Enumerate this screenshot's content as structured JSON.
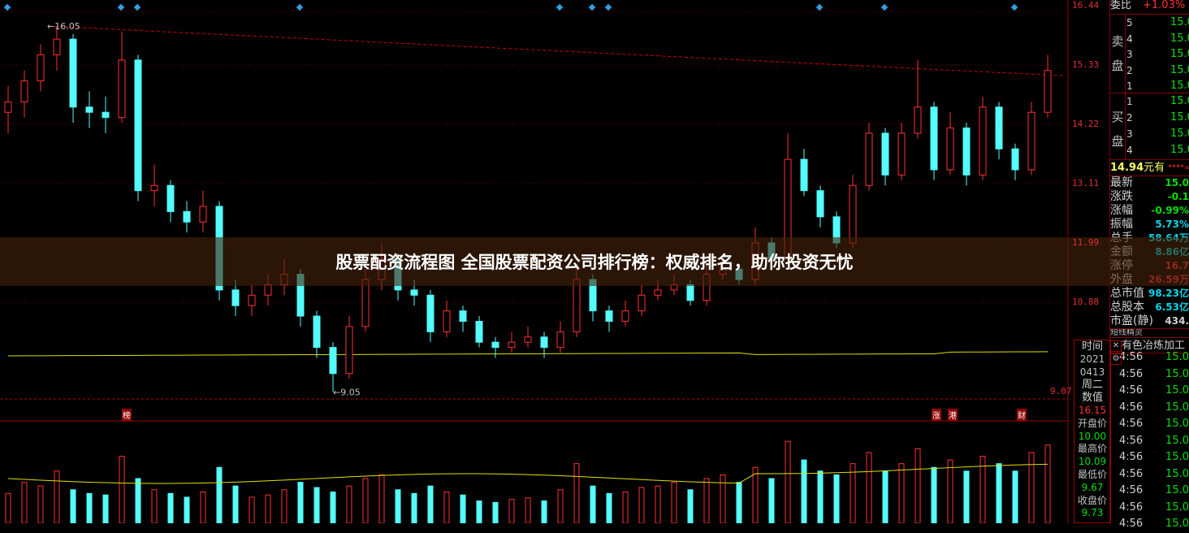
{
  "banner": {
    "title": "股票配资流程图 全国股票配资公司排行榜：权威排名，助你投资无忧"
  },
  "chart_data": {
    "type": "candlestick",
    "price_axis_ticks": [
      "16.44",
      "15.33",
      "14.22",
      "13.11",
      "11.99",
      "10.88",
      "9.07"
    ],
    "ylim": [
      9.07,
      16.44
    ],
    "high_annotation": "16.05",
    "low_annotation": "9.05",
    "colors": {
      "up": "#ff3030",
      "down": "#54fcfc",
      "ma": "#e0e000"
    },
    "candles": [
      [
        14.4,
        14.9,
        14.0,
        14.6
      ],
      [
        14.6,
        15.2,
        14.3,
        15.0
      ],
      [
        15.0,
        15.7,
        14.8,
        15.5
      ],
      [
        15.5,
        16.05,
        15.2,
        15.8
      ],
      [
        15.8,
        15.9,
        14.2,
        14.5
      ],
      [
        14.5,
        14.8,
        14.1,
        14.4
      ],
      [
        14.4,
        14.7,
        14.0,
        14.3
      ],
      [
        14.3,
        15.95,
        14.2,
        15.4
      ],
      [
        15.4,
        15.5,
        12.7,
        12.9
      ],
      [
        12.9,
        13.4,
        12.6,
        13.0
      ],
      [
        13.0,
        13.1,
        12.3,
        12.5
      ],
      [
        12.5,
        12.7,
        12.1,
        12.3
      ],
      [
        12.3,
        12.9,
        12.1,
        12.6
      ],
      [
        12.6,
        12.7,
        10.8,
        11.0
      ],
      [
        11.0,
        11.2,
        10.5,
        10.7
      ],
      [
        10.7,
        11.1,
        10.5,
        10.9
      ],
      [
        10.9,
        11.3,
        10.7,
        11.1
      ],
      [
        11.1,
        11.6,
        10.9,
        11.3
      ],
      [
        11.3,
        11.4,
        10.3,
        10.5
      ],
      [
        10.5,
        10.6,
        9.7,
        9.9
      ],
      [
        9.9,
        10.0,
        9.05,
        9.4
      ],
      [
        9.4,
        10.5,
        9.3,
        10.3
      ],
      [
        10.3,
        11.4,
        10.2,
        11.2
      ],
      [
        11.2,
        11.9,
        11.0,
        11.6
      ],
      [
        11.6,
        11.7,
        10.8,
        11.0
      ],
      [
        11.0,
        11.2,
        10.7,
        10.9
      ],
      [
        10.9,
        11.0,
        10.0,
        10.2
      ],
      [
        10.2,
        10.8,
        10.1,
        10.6
      ],
      [
        10.6,
        10.7,
        10.2,
        10.4
      ],
      [
        10.4,
        10.5,
        9.9,
        10.0
      ],
      [
        10.0,
        10.1,
        9.7,
        9.9
      ],
      [
        9.9,
        10.2,
        9.8,
        10.0
      ],
      [
        10.0,
        10.3,
        9.9,
        10.1
      ],
      [
        10.1,
        10.2,
        9.7,
        9.9
      ],
      [
        9.9,
        10.4,
        9.8,
        10.2
      ],
      [
        10.2,
        11.5,
        10.1,
        11.2
      ],
      [
        11.2,
        11.3,
        10.4,
        10.6
      ],
      [
        10.6,
        10.7,
        10.2,
        10.4
      ],
      [
        10.4,
        10.8,
        10.3,
        10.6
      ],
      [
        10.6,
        11.1,
        10.5,
        10.9
      ],
      [
        10.9,
        11.2,
        10.8,
        11.0
      ],
      [
        11.0,
        11.3,
        10.9,
        11.1
      ],
      [
        11.1,
        11.2,
        10.7,
        10.8
      ],
      [
        10.8,
        11.5,
        10.7,
        11.3
      ],
      [
        11.3,
        11.6,
        11.2,
        11.4
      ],
      [
        11.4,
        11.5,
        11.1,
        11.2
      ],
      [
        11.2,
        12.2,
        11.1,
        11.9
      ],
      [
        11.9,
        12.0,
        11.4,
        11.6
      ],
      [
        11.6,
        14.0,
        11.5,
        13.5
      ],
      [
        13.5,
        13.7,
        12.8,
        12.9
      ],
      [
        12.9,
        13.0,
        12.2,
        12.4
      ],
      [
        12.4,
        12.5,
        11.8,
        11.9
      ],
      [
        11.9,
        13.2,
        11.8,
        13.0
      ],
      [
        13.0,
        14.2,
        12.9,
        14.0
      ],
      [
        14.0,
        14.1,
        13.0,
        13.2
      ],
      [
        13.2,
        14.2,
        13.1,
        14.0
      ],
      [
        14.0,
        15.4,
        13.9,
        14.5
      ],
      [
        14.5,
        14.6,
        13.1,
        13.3
      ],
      [
        13.3,
        14.4,
        13.2,
        14.1
      ],
      [
        14.1,
        14.2,
        13.0,
        13.2
      ],
      [
        13.2,
        14.7,
        13.1,
        14.5
      ],
      [
        14.5,
        14.6,
        13.5,
        13.7
      ],
      [
        13.7,
        13.8,
        13.1,
        13.3
      ],
      [
        13.3,
        14.6,
        13.2,
        14.4
      ],
      [
        14.4,
        15.5,
        14.3,
        15.2
      ]
    ],
    "volumes": [
      40,
      55,
      50,
      70,
      45,
      40,
      38,
      90,
      60,
      45,
      40,
      35,
      42,
      75,
      50,
      35,
      38,
      45,
      55,
      48,
      42,
      50,
      60,
      65,
      45,
      40,
      50,
      42,
      38,
      30,
      28,
      32,
      34,
      30,
      45,
      80,
      50,
      40,
      42,
      48,
      50,
      55,
      45,
      60,
      65,
      55,
      75,
      60,
      110,
      85,
      70,
      65,
      80,
      95,
      70,
      80,
      100,
      75,
      85,
      70,
      90,
      80,
      70,
      95,
      105
    ],
    "top_markers": [
      0,
      7,
      8,
      18,
      34,
      36,
      37,
      50,
      54,
      62
    ]
  },
  "price_panel": {
    "wei_bi_label": "委比",
    "wei_bi_value": "+1.03%",
    "sell_label": "卖盘",
    "buy_label": "买盘",
    "sell": [
      {
        "level": "5",
        "price": "15.0"
      },
      {
        "level": "4",
        "price": "15.0"
      },
      {
        "level": "3",
        "price": "15.0"
      },
      {
        "level": "2",
        "price": "15.0"
      },
      {
        "level": "1",
        "price": "15.0"
      }
    ],
    "buy": [
      {
        "level": "1",
        "price": "15.0"
      },
      {
        "level": "2",
        "price": "15.0"
      },
      {
        "level": "3",
        "price": "15.0"
      },
      {
        "level": "4",
        "price": "15.0"
      }
    ],
    "promo_price": "14.94",
    "promo_text": "元有",
    "promo_stars": "****=",
    "stats": [
      {
        "label": "最新",
        "value": "15.0",
        "color": "g"
      },
      {
        "label": "涨跌",
        "value": "-0.1",
        "color": "g"
      },
      {
        "label": "涨幅",
        "value": "-0.99%",
        "color": "g"
      },
      {
        "label": "振幅",
        "value": "5.73%",
        "color": "c"
      },
      {
        "label": "总手",
        "value": "58.64万",
        "color": "c"
      },
      {
        "label": "金额",
        "value": "8.86亿",
        "color": "c"
      },
      {
        "label": "涨停",
        "value": "16.7",
        "color": "r"
      },
      {
        "label": "外盘",
        "value": "26.59万",
        "color": "r"
      },
      {
        "label": "总市值",
        "value": "98.23亿",
        "color": "c"
      },
      {
        "label": "总股本",
        "value": "6.53亿",
        "color": "c"
      },
      {
        "label": "市盈(静)",
        "value": "434.",
        "color": "w"
      }
    ],
    "section_partial": "短线精灵",
    "industry": "有色冶炼加工"
  },
  "ticks": [
    {
      "time": "4:56",
      "price": "15.0"
    },
    {
      "time": "4:56",
      "price": "15.0"
    },
    {
      "time": "4:56",
      "price": "15.0"
    },
    {
      "time": "4:56",
      "price": "15.0"
    },
    {
      "time": "4:56",
      "price": "15.0"
    },
    {
      "time": "4:56",
      "price": "15.0"
    },
    {
      "time": "4:56",
      "price": "15.0"
    },
    {
      "time": "4:56",
      "price": "15.0"
    },
    {
      "time": "4:56",
      "price": "15.0"
    },
    {
      "time": "4:56",
      "price": "15.0"
    },
    {
      "time": "4:56",
      "price": "15.0"
    }
  ],
  "info_box": {
    "time_label": "时间",
    "year": "2021",
    "date": "0413",
    "weekday": "周二",
    "value_label": "数值",
    "value": "16.15",
    "open_label": "开盘价",
    "open": "10.00",
    "high_label": "最高价",
    "high": "10.09",
    "low_label": "最低价",
    "low": "9.67",
    "close_label": "收盘价",
    "close": "9.73"
  },
  "markers": {
    "bang": "榜",
    "zhang": "涨",
    "gang": "港",
    "cai": "财"
  }
}
